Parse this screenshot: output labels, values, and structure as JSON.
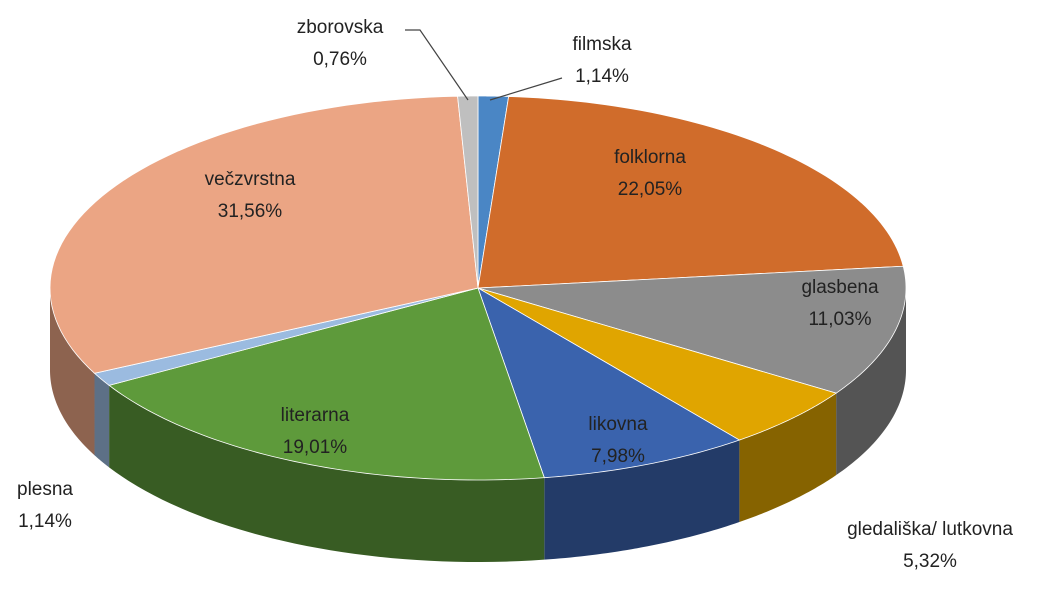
{
  "chart_data": {
    "type": "pie",
    "categories": [
      "filmska",
      "folklorna",
      "glasbena",
      "gledališka/ lutkovna",
      "likovna",
      "literarna",
      "plesna",
      "večzvrstna",
      "zborovska"
    ],
    "values": [
      1.14,
      22.05,
      11.03,
      5.32,
      7.98,
      19.01,
      1.14,
      31.56,
      0.76
    ],
    "value_labels": [
      "1,14%",
      "22,05%",
      "11,03%",
      "5,32%",
      "7,98%",
      "19,01%",
      "1,14%",
      "31,56%",
      "0,76%"
    ],
    "colors": [
      "#4a86c5",
      "#d06c2b",
      "#8c8c8c",
      "#e0a500",
      "#3a63ad",
      "#5e9a3b",
      "#9bbbe0",
      "#eba584",
      "#bfbfbf"
    ]
  }
}
